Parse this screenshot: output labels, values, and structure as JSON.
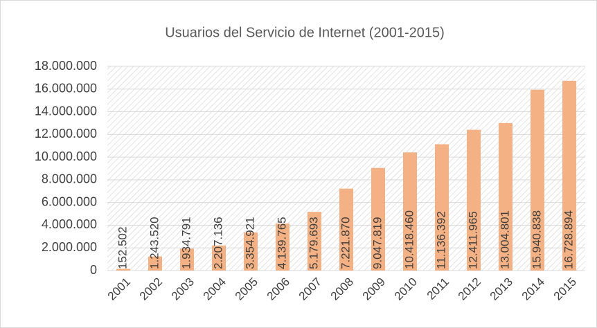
{
  "chart_data": {
    "type": "bar",
    "title": "Usuarios del Servicio de Internet (2001-2015)",
    "categories": [
      "2001",
      "2002",
      "2003",
      "2004",
      "2005",
      "2006",
      "2007",
      "2008",
      "2009",
      "2010",
      "2011",
      "2012",
      "2013",
      "2014",
      "2015"
    ],
    "values": [
      152502,
      1243520,
      1934791,
      2207136,
      3354921,
      4139765,
      5179693,
      7221870,
      9047819,
      10418460,
      11136392,
      12411965,
      13004801,
      15940838,
      16728894
    ],
    "value_labels": [
      "152.502",
      "1.243.520",
      "1.934.791",
      "2.207.136",
      "3.354.921",
      "4.139.765",
      "5.179.693",
      "7.221.870",
      "9.047.819",
      "10.418.460",
      "11.136.392",
      "12.411.965",
      "13.004.801",
      "15.940.838",
      "16.728.894"
    ],
    "color": "#f4b183",
    "ylim": [
      0,
      18000000
    ],
    "yticks": [
      0,
      {
        "value": 2000000,
        "label": "2.000.000"
      },
      {
        "value": 4000000,
        "label": "4.000.000"
      },
      {
        "value": 6000000,
        "label": "6.000.000"
      },
      {
        "value": 8000000,
        "label": "8.000.000"
      },
      {
        "value": 10000000,
        "label": "10.000.000"
      },
      {
        "value": 12000000,
        "label": "12.000.000"
      },
      {
        "value": 14000000,
        "label": "14.000.000"
      },
      {
        "value": 16000000,
        "label": "16.000.000"
      },
      {
        "value": 18000000,
        "label": "18.000.000"
      }
    ],
    "grid": true
  }
}
